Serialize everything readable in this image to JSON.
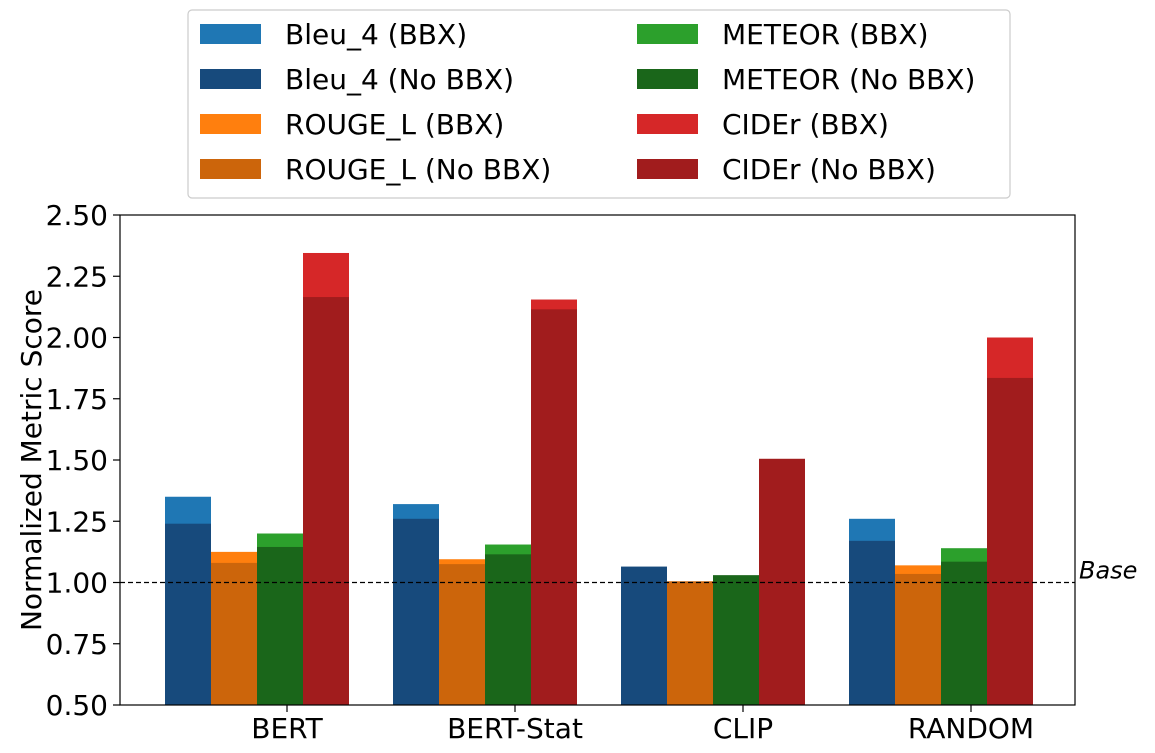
{
  "chart_data": {
    "type": "bar",
    "categories": [
      "BERT",
      "BERT-Stat",
      "CLIP",
      "RANDOM"
    ],
    "ylabel": "Normalized Metric Score",
    "xlabel": "",
    "ylim": [
      0.5,
      2.5
    ],
    "yticks": [
      "0.50",
      "0.75",
      "1.00",
      "1.25",
      "1.50",
      "1.75",
      "2.00",
      "2.25",
      "2.50"
    ],
    "grid": false,
    "legend_position": "top-center",
    "reference_line": {
      "value": 1.0,
      "label": "Base",
      "style": "dashed"
    },
    "series": [
      {
        "name": "Bleu_4 (BBX)",
        "color": "#1f77b4",
        "values": [
          1.35,
          1.32,
          1.06,
          1.26
        ]
      },
      {
        "name": "Bleu_4 (No BBX)",
        "color": "#174a7c",
        "values": [
          1.24,
          1.26,
          1.065,
          1.17
        ]
      },
      {
        "name": "ROUGE_L (BBX)",
        "color": "#ff7f0e",
        "values": [
          1.125,
          1.095,
          1.0,
          1.07
        ]
      },
      {
        "name": "ROUGE_L (No BBX)",
        "color": "#cc650b",
        "values": [
          1.08,
          1.075,
          1.005,
          1.035
        ]
      },
      {
        "name": "METEOR (BBX)",
        "color": "#2ca02c",
        "values": [
          1.2,
          1.155,
          1.025,
          1.14
        ]
      },
      {
        "name": "METEOR (No BBX)",
        "color": "#1a661a",
        "values": [
          1.145,
          1.115,
          1.03,
          1.085
        ]
      },
      {
        "name": "CIDEr (BBX)",
        "color": "#d62728",
        "values": [
          2.345,
          2.155,
          1.48,
          2.0
        ]
      },
      {
        "name": "CIDEr (No BBX)",
        "color": "#a11c1d",
        "values": [
          2.165,
          2.115,
          1.505,
          1.835
        ]
      }
    ]
  }
}
